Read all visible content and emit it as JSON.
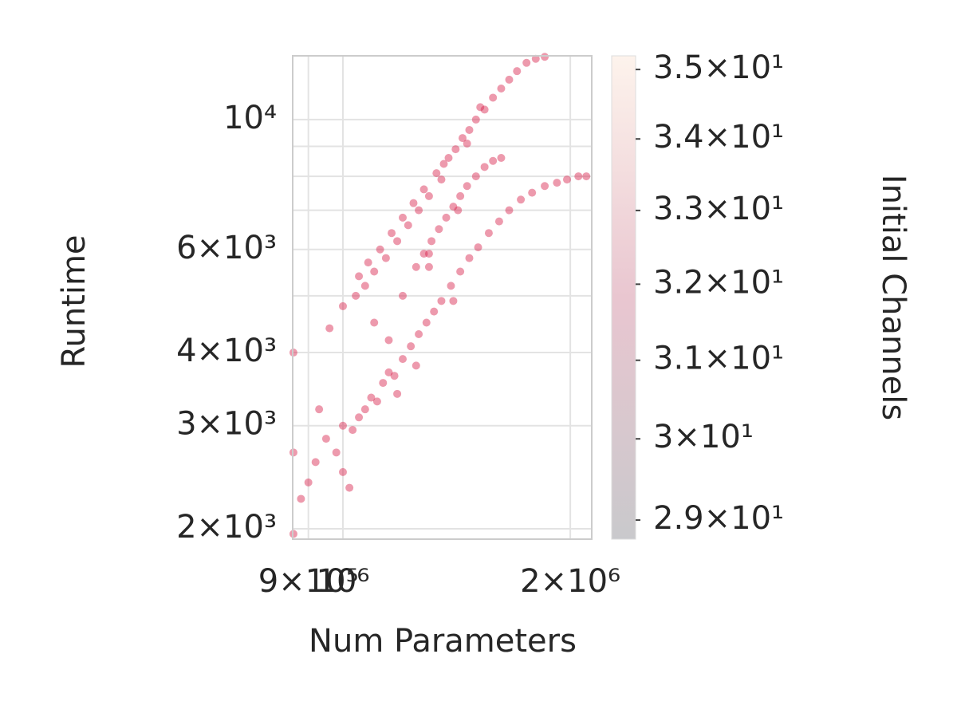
{
  "chart_data": {
    "type": "scatter",
    "xlabel": "Num Parameters",
    "ylabel": "Runtime",
    "colorbar_label": "Initial Channels",
    "xscale": "log",
    "yscale": "log",
    "grid": true,
    "color": "#d6204a",
    "colormap": [
      "#c9c9cc",
      "#e9c6d0",
      "#fdf3ec"
    ],
    "xlim": [
      858000,
      2135000
    ],
    "ylim": [
      1920,
      12850
    ],
    "xticks": [
      {
        "value": 900000,
        "label": "9×10⁵"
      },
      {
        "value": 1000000,
        "label": "10⁶"
      },
      {
        "value": 2000000,
        "label": "2×10⁶"
      }
    ],
    "yticks": [
      {
        "value": 2000,
        "label": "2×10³"
      },
      {
        "value": 3000,
        "label": "3×10³"
      },
      {
        "value": 4000,
        "label": "4×10³"
      },
      {
        "value": 6000,
        "label": "6×10³"
      },
      {
        "value": 10000,
        "label": "10⁴"
      }
    ],
    "yminor_ticks": [
      5000,
      7000,
      8000,
      9000
    ],
    "clim": [
      28.77,
      35.2
    ],
    "cticks": [
      {
        "value": 29,
        "label": "2.9×10¹"
      },
      {
        "value": 30,
        "label": "3×10¹"
      },
      {
        "value": 31,
        "label": "3.1×10¹"
      },
      {
        "value": 32,
        "label": "3.2×10¹"
      },
      {
        "value": 33,
        "label": "3.3×10¹"
      },
      {
        "value": 34,
        "label": "3.4×10¹"
      },
      {
        "value": 35,
        "label": "3.5×10¹"
      }
    ],
    "x": [
      1050000,
      1070000,
      1080000,
      1100000,
      1120000,
      1140000,
      1160000,
      1180000,
      1200000,
      1220000,
      1240000,
      1260000,
      1280000,
      1300000,
      1330000,
      1350000,
      1380000,
      1410000,
      1440000,
      1470000,
      1500000,
      1540000,
      1580000,
      1620000,
      1660000,
      1700000,
      1750000,
      1800000,
      1850000,
      1460000,
      1520000,
      1360000,
      1250000,
      1280000,
      1310000,
      1340000,
      1370000,
      1400000,
      1430000,
      1460000,
      1500000,
      1540000,
      1580000,
      1620000,
      1300000,
      1420000,
      1000000,
      1030000,
      1050000,
      1070000,
      1090000,
      1110000,
      1130000,
      1150000,
      1170000,
      1200000,
      1230000,
      1260000,
      1290000,
      1320000,
      1350000,
      1390000,
      1430000,
      1470000,
      1510000,
      1560000,
      1610000,
      1660000,
      1720000,
      1780000,
      1850000,
      1920000,
      1980000,
      2050000,
      2100000,
      1250000,
      1180000,
      1400000,
      860000,
      860000,
      860000,
      880000,
      900000,
      920000,
      950000,
      980000,
      1000000,
      1020000,
      960000,
      1000000,
      1040000,
      1100000,
      1200000,
      1300000,
      1150000,
      930000
    ],
    "y": [
      5400,
      5200,
      5700,
      5500,
      6000,
      5800,
      6400,
      6200,
      6800,
      6600,
      7200,
      7000,
      7600,
      7400,
      8100,
      7900,
      8600,
      8900,
      9300,
      9600,
      10000,
      10400,
      10900,
      11300,
      11700,
      12100,
      12500,
      12700,
      12800,
      9100,
      10500,
      8400,
      5600,
      5900,
      6200,
      6500,
      6800,
      7100,
      7400,
      7700,
      8000,
      8300,
      8500,
      8600,
      5900,
      7000,
      3000,
      2950,
      3100,
      3200,
      3350,
      3300,
      3550,
      3700,
      3650,
      3900,
      4100,
      4300,
      4500,
      4700,
      4900,
      5200,
      5500,
      5800,
      6050,
      6400,
      6700,
      7000,
      7300,
      7500,
      7700,
      7800,
      7900,
      8000,
      8000,
      3800,
      3400,
      4900,
      4000,
      2700,
      1960,
      2250,
      2400,
      2600,
      2850,
      2700,
      2500,
      2350,
      4400,
      4800,
      5000,
      4500,
      5000,
      5600,
      4200,
      3200
    ]
  }
}
